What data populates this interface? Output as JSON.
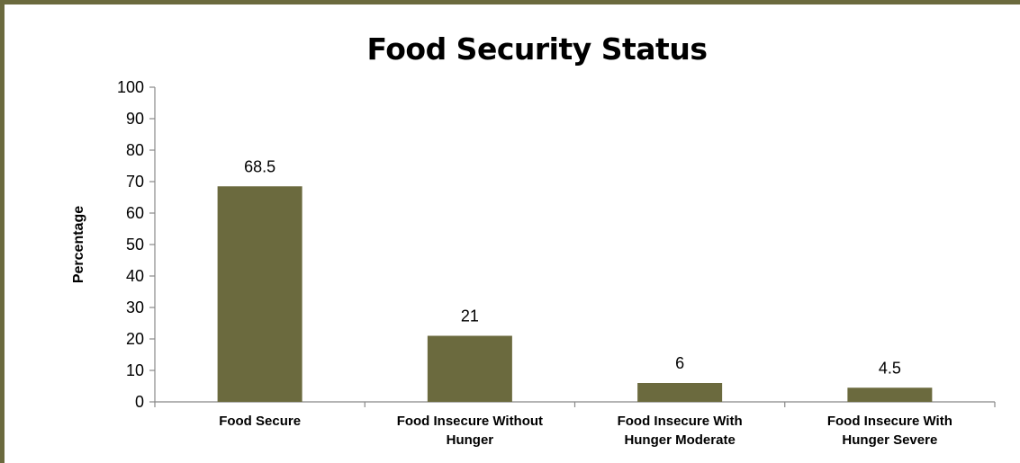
{
  "chart_data": {
    "type": "bar",
    "title": "Food Security Status",
    "xlabel": "",
    "ylabel": "Percentage",
    "ylim": [
      0,
      100
    ],
    "yticks": [
      0,
      10,
      20,
      30,
      40,
      50,
      60,
      70,
      80,
      90,
      100
    ],
    "categories": [
      [
        "Food Secure"
      ],
      [
        "Food Insecure Without",
        "Hunger"
      ],
      [
        "Food Insecure With",
        "Hunger Moderate"
      ],
      [
        "Food Insecure With",
        "Hunger Severe"
      ]
    ],
    "values": [
      68.5,
      21,
      6,
      4.5
    ],
    "data_labels": [
      "68.5",
      "21",
      "6",
      "4.5"
    ],
    "bar_color": "#6b6a3e",
    "grid": false,
    "legend": "none"
  }
}
